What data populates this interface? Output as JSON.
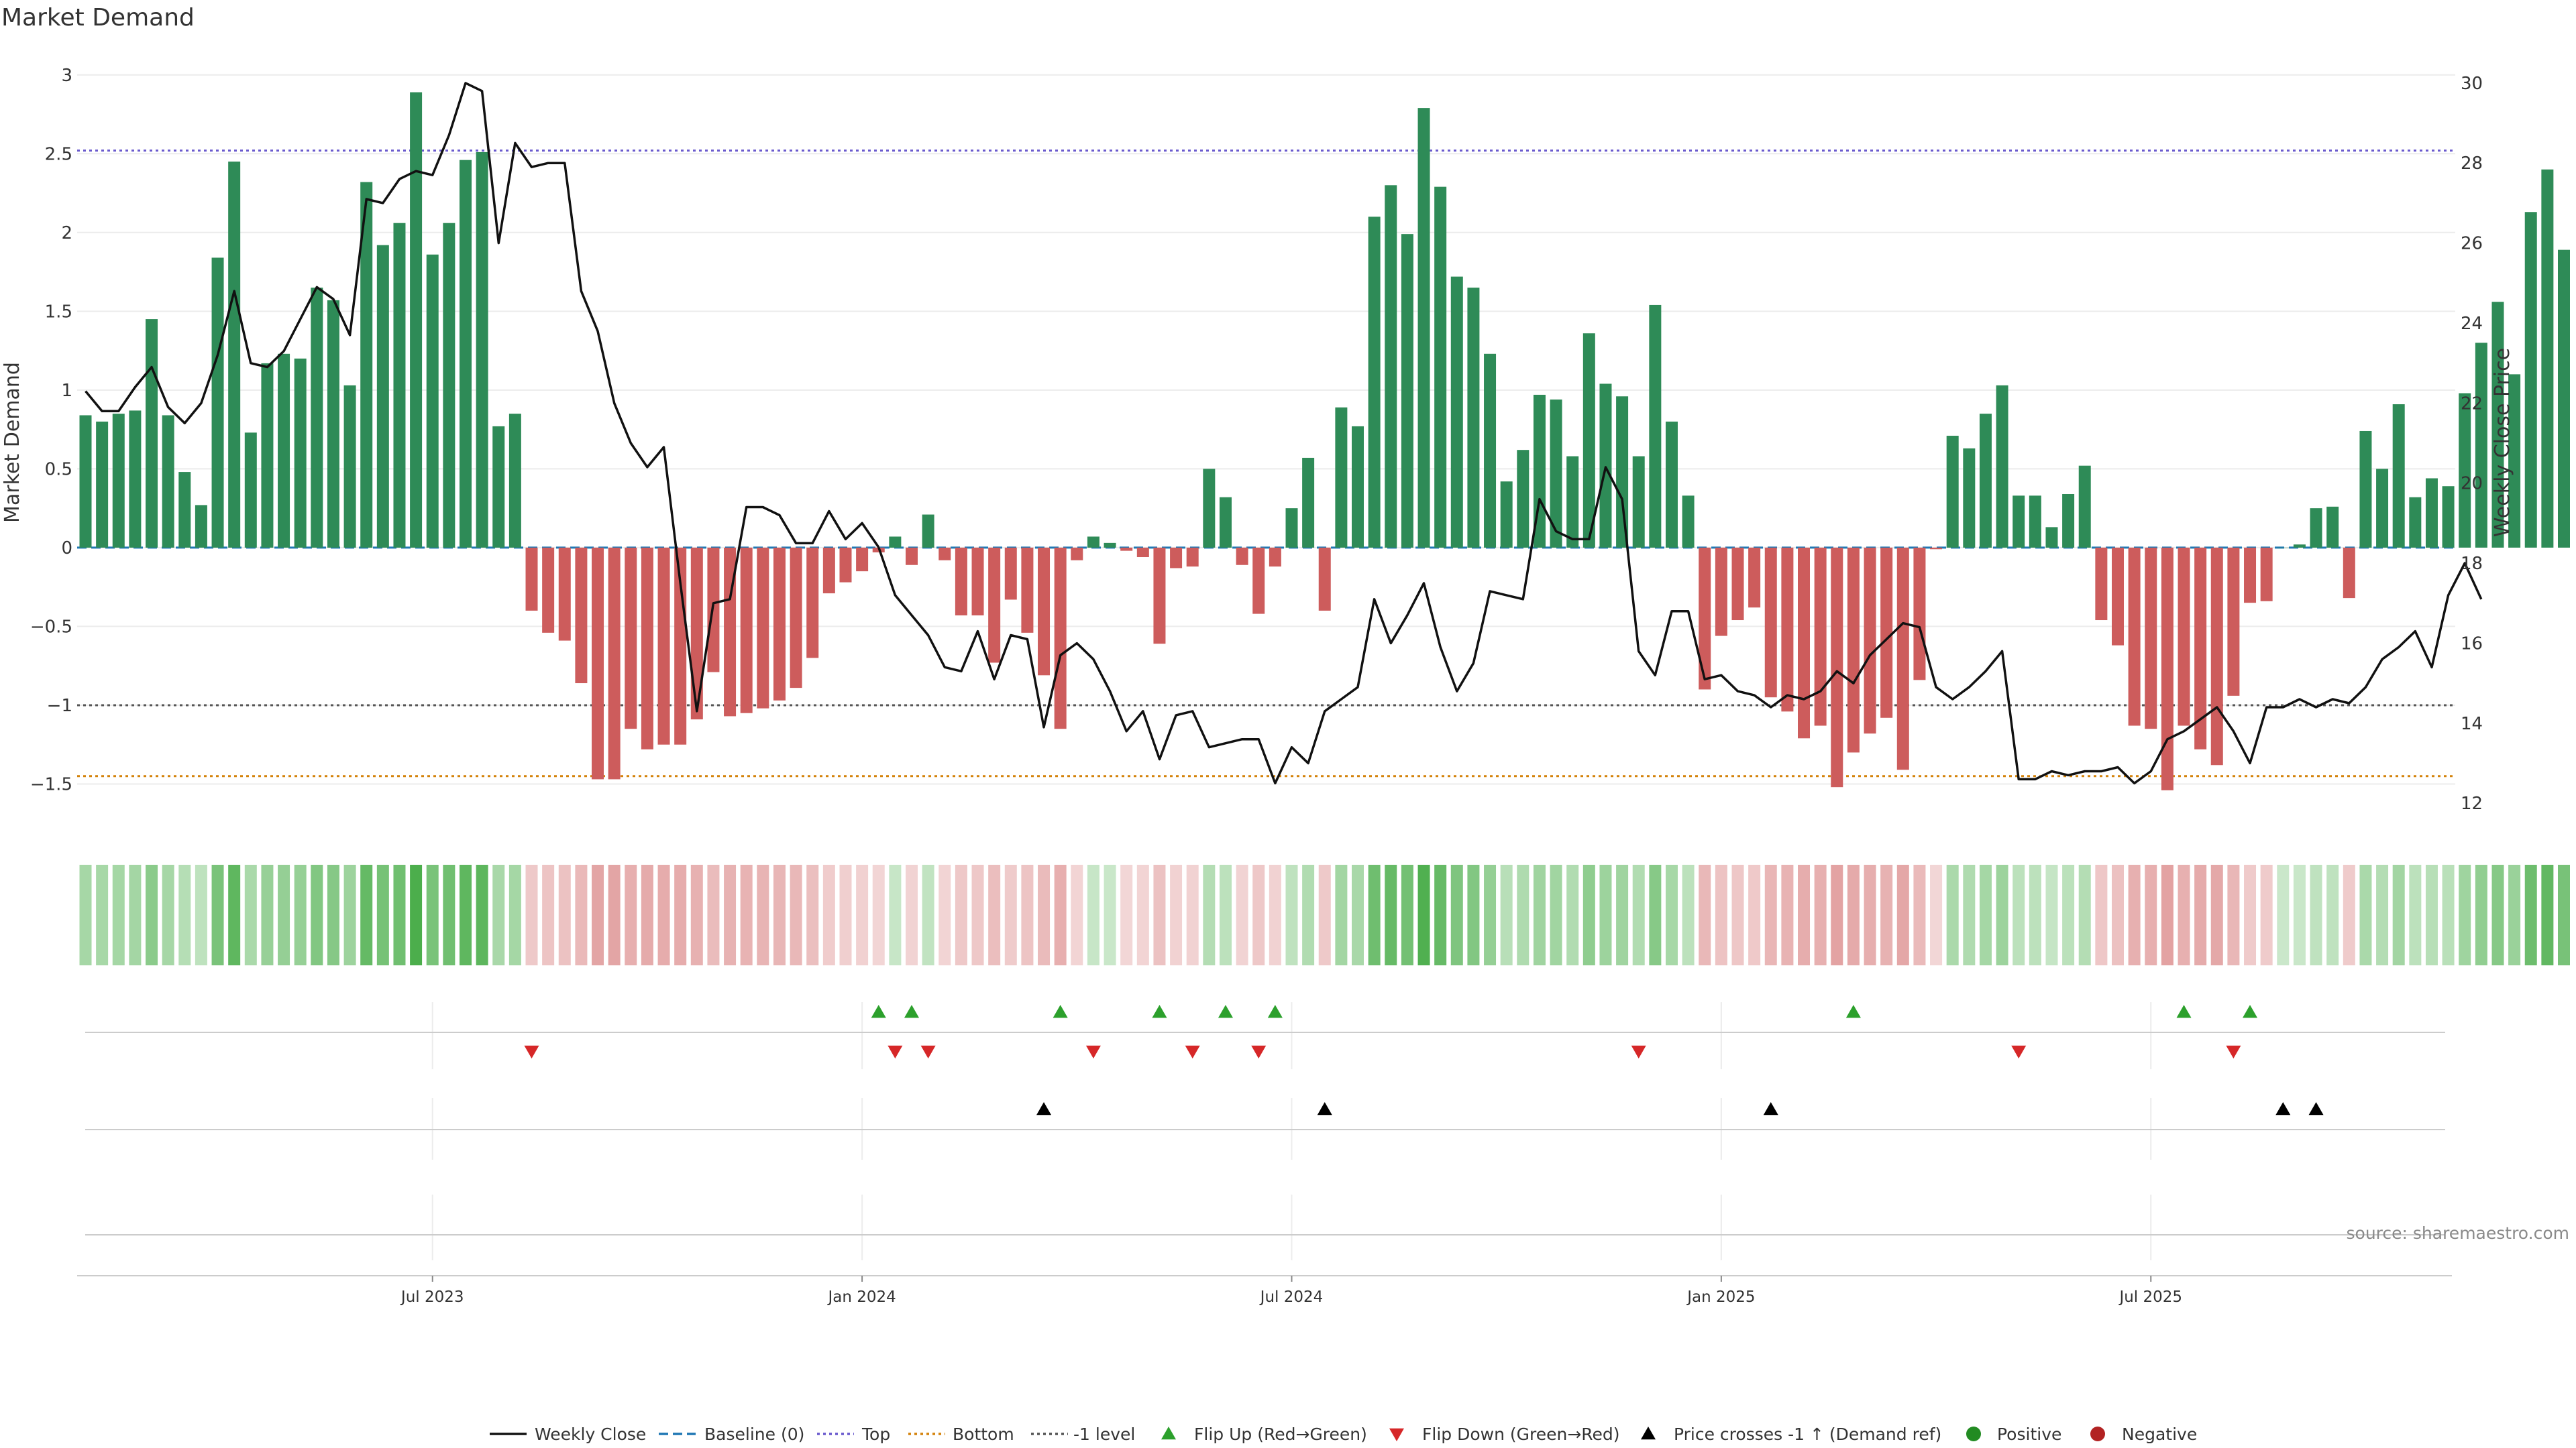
{
  "chart_data": {
    "type": "bar+line",
    "title": "Market Demand",
    "ylabel_left": "Market Demand",
    "ylabel_right": "Weekly Close Price",
    "ylim_left": [
      -1.8,
      3.05
    ],
    "ylim_right": [
      11.3,
      30.4
    ],
    "yticks_left": [
      3,
      2.5,
      2,
      1.5,
      1,
      0.5,
      0,
      -0.5,
      -1,
      -1.5
    ],
    "yticks_left_labels": [
      "3",
      "2.5",
      "2",
      "1.5",
      "1",
      "0.5",
      "0",
      "−0.5",
      "−1",
      "−1.5"
    ],
    "yticks_right": [
      30,
      28,
      26,
      24,
      22,
      20,
      18,
      16,
      14,
      12
    ],
    "reference_lines": {
      "top": 2.52,
      "bottom": -1.45,
      "minus_one": -1.0,
      "baseline": 0
    },
    "x_tick_labels": [
      "Jul 2023",
      "Jan 2024",
      "Jul 2024",
      "Jan 2025",
      "Jul 2025"
    ],
    "x_tick_index": [
      21,
      47,
      73,
      99,
      125
    ],
    "demand": [
      0.84,
      0.8,
      0.85,
      0.87,
      1.45,
      0.84,
      0.48,
      0.27,
      1.84,
      2.45,
      0.73,
      1.17,
      1.23,
      1.2,
      1.65,
      1.57,
      1.03,
      2.32,
      1.92,
      2.06,
      2.89,
      1.86,
      2.06,
      2.46,
      2.51,
      0.77,
      0.85,
      -0.4,
      -0.54,
      -0.59,
      -0.86,
      -1.47,
      -1.47,
      -1.15,
      -1.28,
      -1.25,
      -1.25,
      -1.09,
      -0.79,
      -1.07,
      -1.05,
      -1.02,
      -0.97,
      -0.89,
      -0.7,
      -0.29,
      -0.22,
      -0.15,
      -0.03,
      0.07,
      -0.11,
      0.21,
      -0.08,
      -0.43,
      -0.43,
      -0.73,
      -0.33,
      -0.54,
      -0.81,
      -1.15,
      -0.08,
      0.07,
      0.03,
      -0.02,
      -0.06,
      -0.61,
      -0.13,
      -0.12,
      0.5,
      0.32,
      -0.11,
      -0.42,
      -0.12,
      0.25,
      0.57,
      -0.4,
      0.89,
      0.77,
      2.1,
      2.3,
      1.99,
      2.79,
      2.29,
      1.72,
      1.65,
      1.23,
      0.42,
      0.62,
      0.97,
      0.94,
      0.58,
      1.36,
      1.04,
      0.96,
      0.58,
      1.54,
      0.8,
      0.33,
      -0.9,
      -0.56,
      -0.46,
      -0.38,
      -0.95,
      -1.04,
      -1.21,
      -1.13,
      -1.52,
      -1.3,
      -1.18,
      -1.08,
      -1.41,
      -0.84,
      -0.01,
      0.71,
      0.63,
      0.85,
      1.03,
      0.33,
      0.33,
      0.13,
      0.34,
      0.52,
      -0.46,
      -0.62,
      -1.13,
      -1.15,
      -1.54,
      -1.13,
      -1.28,
      -1.38,
      -0.94,
      -0.35,
      -0.34,
      0.0,
      0.02,
      0.25,
      0.26,
      -0.32,
      0.74,
      0.5,
      0.91,
      0.32,
      0.44,
      0.39,
      0.98,
      1.3,
      1.56,
      1.1,
      2.13,
      2.4,
      1.89
    ],
    "weekly_close": [
      22.3,
      21.8,
      21.8,
      22.4,
      22.9,
      21.9,
      21.5,
      22.0,
      23.2,
      24.8,
      23.0,
      22.9,
      23.3,
      24.1,
      24.9,
      24.6,
      23.7,
      27.1,
      27.0,
      27.6,
      27.8,
      27.7,
      28.7,
      30.0,
      29.8,
      26.0,
      28.5,
      27.9,
      28.0,
      28.0,
      24.8,
      23.8,
      22.0,
      21.0,
      20.4,
      20.9,
      17.5,
      14.3,
      17.0,
      17.1,
      19.4,
      19.4,
      19.2,
      18.5,
      18.5,
      19.3,
      18.6,
      19.0,
      18.4,
      17.2,
      16.7,
      16.2,
      15.4,
      15.3,
      16.3,
      15.1,
      16.2,
      16.1,
      13.9,
      15.7,
      16.0,
      15.6,
      14.8,
      13.8,
      14.3,
      13.1,
      14.2,
      14.3,
      13.4,
      13.5,
      13.6,
      13.6,
      12.5,
      13.4,
      13.0,
      14.3,
      14.6,
      14.9,
      17.1,
      16.0,
      16.7,
      17.5,
      15.9,
      14.8,
      15.5,
      17.3,
      17.2,
      17.1,
      19.6,
      18.8,
      18.6,
      18.6,
      20.4,
      19.6,
      15.8,
      15.2,
      16.8,
      16.8,
      15.1,
      15.2,
      14.8,
      14.7,
      14.4,
      14.7,
      14.6,
      14.8,
      15.3,
      15.0,
      15.7,
      16.1,
      16.5,
      16.4,
      14.9,
      14.6,
      14.9,
      15.3,
      15.8,
      12.6,
      12.6,
      12.8,
      12.7,
      12.8,
      12.8,
      12.9,
      12.5,
      12.8,
      13.6,
      13.8,
      14.1,
      14.4,
      13.8,
      13.0,
      14.4,
      14.4,
      14.6,
      14.4,
      14.6,
      14.5,
      14.9,
      15.6,
      15.9,
      16.3,
      15.4,
      17.2,
      18.0,
      17.1
    ],
    "flip_up_index": [
      48,
      50,
      59,
      65,
      69,
      72,
      107,
      127,
      131
    ],
    "flip_down_index": [
      27,
      49,
      51,
      61,
      67,
      71,
      94,
      117,
      130
    ],
    "price_cross_index": [
      58,
      75,
      102,
      133,
      135
    ],
    "legend": [
      "Weekly Close",
      "Baseline (0)",
      "Top",
      "Bottom",
      "-1 level",
      "Flip Up (Red→Green)",
      "Flip Down (Green→Red)",
      "Price crosses -1 ↑ (Demand ref)",
      "Positive",
      "Negative"
    ],
    "source": "source: sharemaestro.com"
  },
  "colors": {
    "positive": "#2e8b57",
    "negative": "#cd5c5c",
    "price_line": "#111111",
    "baseline": "#1f77b4",
    "top": "#6a5acd",
    "bottom": "#d4820a",
    "minus_one": "#555555",
    "flip_up": "#2ca02c",
    "flip_down": "#d62728",
    "price_cross": "#000000",
    "grid": "#ececec",
    "axis": "#cccccc"
  }
}
